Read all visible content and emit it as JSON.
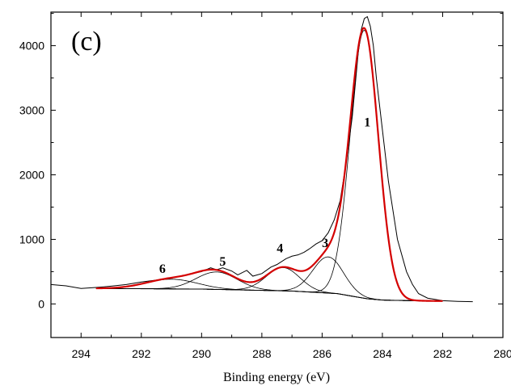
{
  "chart_data": {
    "type": "line",
    "panel_label": "(c)",
    "xlabel": "Binding energy (eV)",
    "ylabel": "",
    "title": "",
    "xlim": [
      295,
      280
    ],
    "ylim": [
      -520,
      4520
    ],
    "x_reversed": true,
    "x_ticks": [
      294,
      292,
      290,
      288,
      286,
      284,
      282,
      280
    ],
    "y_ticks": [
      0,
      1000,
      2000,
      3000,
      4000
    ],
    "grid": false,
    "colors": {
      "raw": "#000000",
      "envelope": "#d40000",
      "components": "#000000",
      "background": "#000000"
    },
    "raw_data": {
      "x": [
        295.0,
        294.5,
        294.0,
        293.5,
        293.0,
        292.5,
        292.0,
        291.5,
        291.0,
        290.5,
        290.0,
        289.7,
        289.5,
        289.3,
        289.0,
        288.8,
        288.5,
        288.3,
        288.0,
        287.7,
        287.5,
        287.2,
        287.0,
        286.8,
        286.6,
        286.4,
        286.2,
        286.0,
        285.8,
        285.6,
        285.4,
        285.2,
        285.0,
        284.9,
        284.8,
        284.7,
        284.6,
        284.5,
        284.4,
        284.3,
        284.2,
        284.0,
        283.8,
        283.5,
        283.2,
        283.0,
        282.8,
        282.5,
        282.0,
        281.5,
        281.0
      ],
      "y": [
        300,
        280,
        240,
        255,
        275,
        300,
        340,
        370,
        400,
        450,
        500,
        560,
        530,
        560,
        510,
        450,
        520,
        430,
        470,
        570,
        610,
        700,
        740,
        760,
        800,
        860,
        930,
        980,
        1100,
        1300,
        1600,
        2200,
        2900,
        3400,
        3900,
        4250,
        4420,
        4450,
        4300,
        4000,
        3500,
        2700,
        1900,
        1000,
        500,
        300,
        160,
        90,
        50,
        40,
        35
      ]
    },
    "envelope": {
      "name": "",
      "x_range": [
        293.5,
        282.0
      ],
      "y": "sum of components plus background"
    },
    "background": {
      "x": [
        293.5,
        290.0,
        287.0,
        285.5,
        285.0,
        284.5,
        284.0,
        283.0,
        282.0
      ],
      "y": [
        240,
        230,
        200,
        160,
        120,
        80,
        60,
        50,
        45
      ]
    },
    "components": [
      {
        "label": "1",
        "center": 284.6,
        "height": 4150,
        "fwhm": 1.1,
        "label_x": 284.5,
        "label_y": 2750
      },
      {
        "label": "3",
        "center": 285.8,
        "height": 560,
        "fwhm": 1.2,
        "label_x": 285.9,
        "label_y": 880
      },
      {
        "label": "4",
        "center": 287.3,
        "height": 360,
        "fwhm": 1.3,
        "label_x": 287.4,
        "label_y": 800
      },
      {
        "label": "5",
        "center": 289.5,
        "height": 270,
        "fwhm": 1.6,
        "label_x": 289.3,
        "label_y": 590
      },
      {
        "label": "6",
        "center": 291.0,
        "height": 150,
        "fwhm": 2.0,
        "label_x": 291.3,
        "label_y": 480
      }
    ]
  }
}
